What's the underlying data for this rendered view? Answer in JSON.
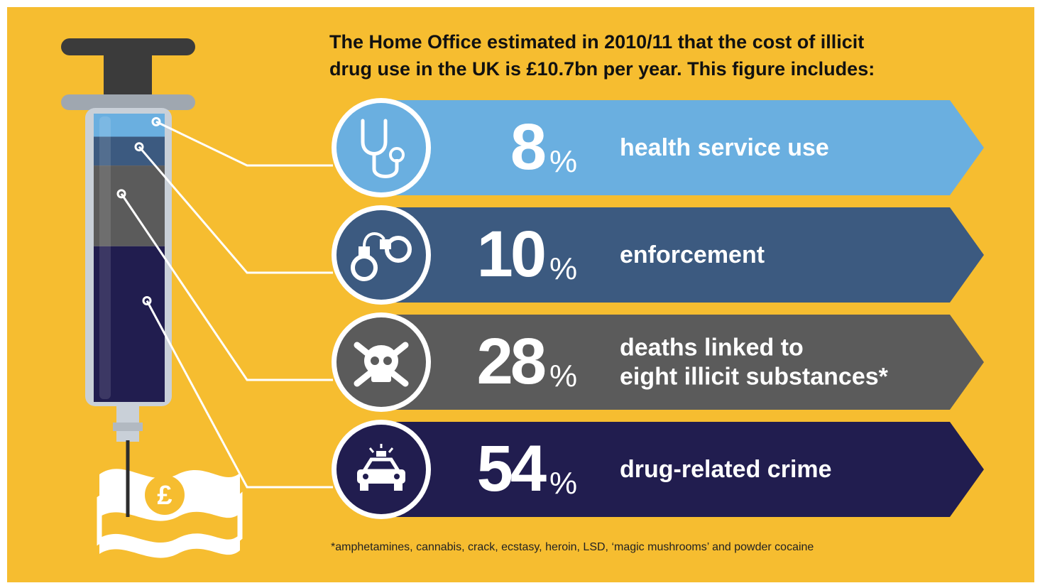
{
  "title_lines": [
    "The Home Office estimated in 2010/11 that the cost of illicit",
    "drug use in the UK is £10.7bn per year. This figure includes:"
  ],
  "footnote": "*amphetamines, cannabis, crack, ecstasy, heroin, LSD, ‘magic mushrooms’ and powder cocaine",
  "colors": {
    "background": "#f6bd30",
    "health": "#6aafe0",
    "enforcement": "#3c5a80",
    "deaths": "#5b5b5b",
    "crime": "#211d4f"
  },
  "chart_data": {
    "type": "bar",
    "total": "£10.7bn",
    "unit": "%",
    "categories": [
      "health service use",
      "enforcement",
      "deaths linked to eight illicit substances*",
      "drug-related crime"
    ],
    "values": [
      8,
      10,
      28,
      54
    ],
    "rows": [
      {
        "value": "8",
        "unit": "%",
        "label_lines": [
          "health service use"
        ],
        "color": "#6aafe0",
        "icon": "stethoscope-icon"
      },
      {
        "value": "10",
        "unit": "%",
        "label_lines": [
          "enforcement"
        ],
        "color": "#3c5a80",
        "icon": "handcuffs-icon"
      },
      {
        "value": "28",
        "unit": "%",
        "label_lines": [
          "deaths linked to",
          "eight illicit substances*"
        ],
        "color": "#5b5b5b",
        "icon": "skull-crossbones-icon"
      },
      {
        "value": "54",
        "unit": "%",
        "label_lines": [
          "drug-related crime"
        ],
        "color": "#211d4f",
        "icon": "police-car-icon"
      }
    ]
  }
}
